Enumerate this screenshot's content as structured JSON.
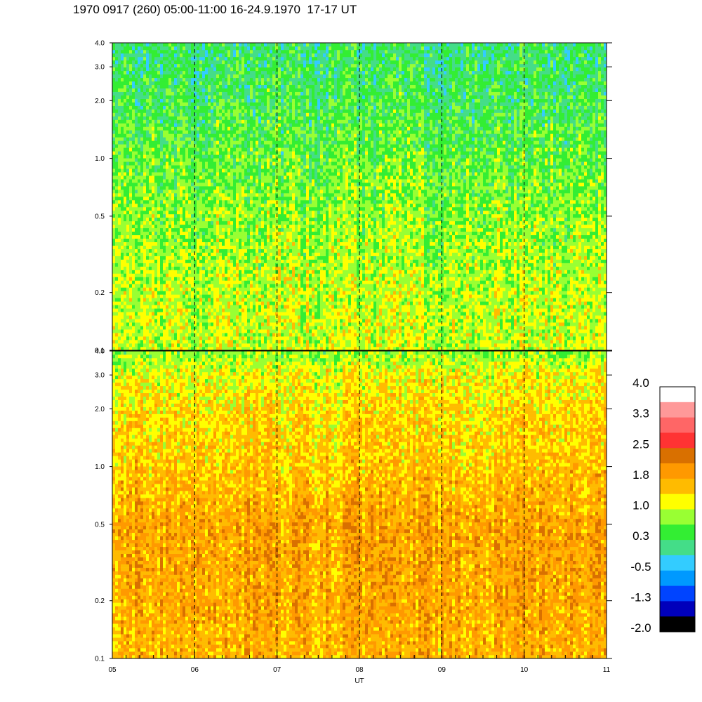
{
  "title": "1970 0917 (260) 05:00-11:00 16-24.9.1970  17-17 UT",
  "chart_data": {
    "type": "heatmap",
    "xlabel": "UT",
    "x_ticks": [
      "05",
      "06",
      "07",
      "08",
      "09",
      "10",
      "11"
    ],
    "x_range_hours": [
      5,
      11
    ],
    "panels": [
      {
        "position": "top",
        "y_scale": "log",
        "y_range": [
          0.1,
          4.0
        ],
        "y_ticks": [
          "0.1",
          "0.2",
          "0.5",
          "1.0",
          "2.0",
          "3.0",
          "4.0"
        ],
        "description_level": [
          [
            0.1,
            1.0
          ],
          [
            0.2,
            0.95
          ],
          [
            0.5,
            0.75
          ],
          [
            1.0,
            0.55
          ],
          [
            2.0,
            0.35
          ],
          [
            3.0,
            0.25
          ],
          [
            4.0,
            0.2
          ]
        ]
      },
      {
        "position": "bottom",
        "y_scale": "log",
        "y_range": [
          0.1,
          4.0
        ],
        "y_ticks": [
          "0.1",
          "0.2",
          "0.5",
          "1.0",
          "2.0",
          "3.0",
          "4.0"
        ],
        "description_level": [
          [
            0.1,
            1.65
          ],
          [
            0.2,
            1.75
          ],
          [
            0.5,
            1.8
          ],
          [
            1.0,
            1.5
          ],
          [
            2.0,
            1.35
          ],
          [
            3.0,
            1.15
          ],
          [
            4.0,
            0.7
          ]
        ]
      }
    ],
    "colorbar": {
      "labels": [
        "4.0",
        "3.3",
        "2.5",
        "1.8",
        "1.0",
        "0.3",
        "-0.5",
        "-1.3",
        "-2.0"
      ],
      "range": [
        -2.0,
        4.0
      ],
      "colors": [
        "#ffffff",
        "#ff9999",
        "#ff6666",
        "#ff3333",
        "#d97000",
        "#ff9900",
        "#ffbb00",
        "#ffff00",
        "#99ff33",
        "#33ee33",
        "#44dd88",
        "#33ccff",
        "#0099ff",
        "#0044ff",
        "#0000bb",
        "#000000"
      ]
    },
    "vertical_dashed_lines_at_hours": [
      6,
      7,
      8,
      9,
      10
    ]
  }
}
